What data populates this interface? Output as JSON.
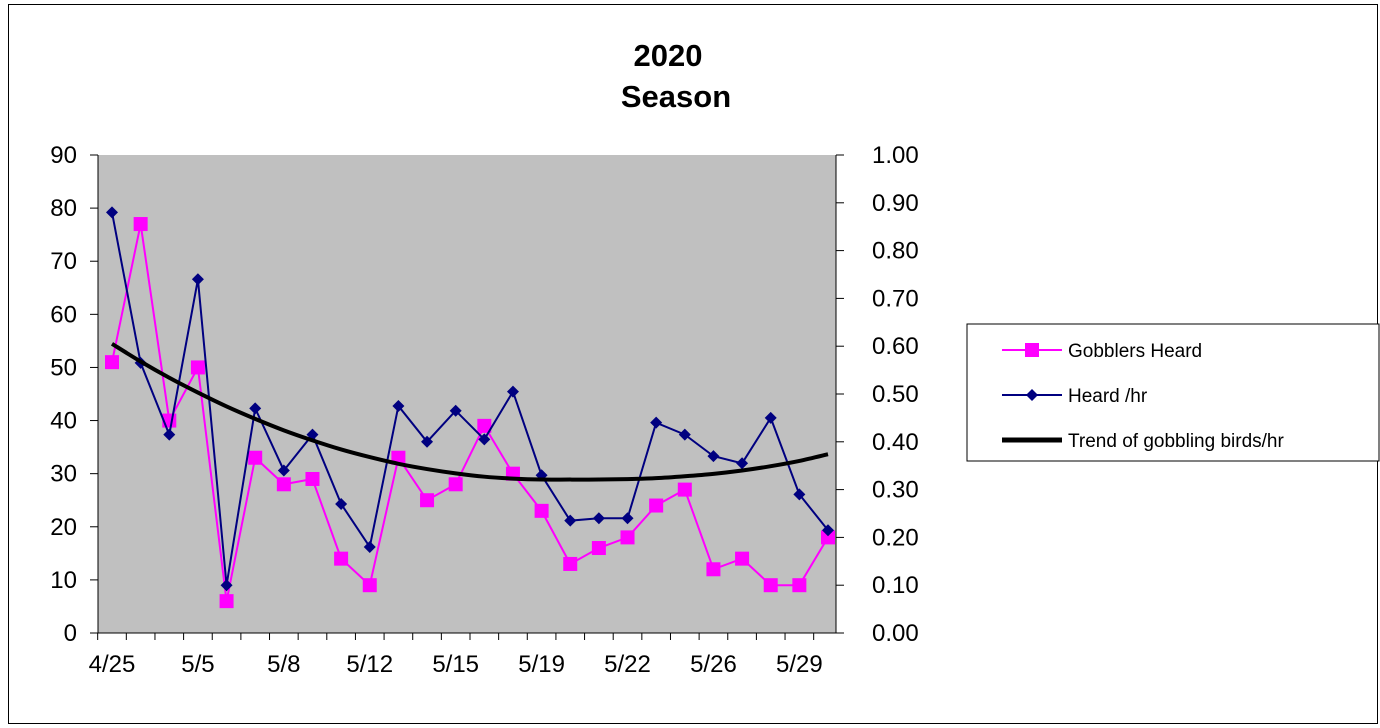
{
  "chart_data": {
    "type": "line",
    "title": [
      "2020",
      "Season"
    ],
    "x_tick_labels": [
      "4/25",
      "5/5",
      "5/8",
      "5/12",
      "5/15",
      "5/19",
      "5/22",
      "5/26",
      "5/29"
    ],
    "y_left": {
      "min": 0,
      "max": 90,
      "ticks": [
        "0",
        "10",
        "20",
        "30",
        "40",
        "50",
        "60",
        "70",
        "80",
        "90"
      ]
    },
    "y_right": {
      "min": 0,
      "max": 1,
      "ticks": [
        "0.00",
        "0.10",
        "0.20",
        "0.30",
        "0.40",
        "0.50",
        "0.60",
        "0.70",
        "0.80",
        "0.90",
        "1.00"
      ]
    },
    "plot_background": "#c0c0c0",
    "grid": false,
    "legend_position": "right",
    "series": [
      {
        "name": "Gobblers Heard",
        "axis": "left",
        "color": "#ff00ff",
        "marker": "square",
        "values": [
          51,
          77,
          40,
          50,
          6,
          33,
          28,
          29,
          14,
          9,
          33,
          25,
          28,
          39,
          30,
          23,
          13,
          16,
          18,
          24,
          27,
          12,
          14,
          9,
          9,
          18
        ]
      },
      {
        "name": "Heard /hr",
        "axis": "right",
        "color": "#000080",
        "marker": "diamond",
        "values": [
          0.88,
          0.565,
          0.415,
          0.74,
          0.1,
          0.47,
          0.34,
          0.415,
          0.27,
          0.18,
          0.475,
          0.4,
          0.465,
          0.405,
          0.505,
          0.33,
          0.235,
          0.24,
          0.24,
          0.44,
          0.415,
          0.37,
          0.355,
          0.45,
          0.29,
          0.215
        ]
      },
      {
        "name": "Trend of gobbling birds/hr",
        "axis": "right",
        "color": "#000000",
        "marker": "none",
        "values": [
          0.605,
          0.568,
          0.534,
          0.503,
          0.474,
          0.448,
          0.424,
          0.403,
          0.384,
          0.368,
          0.354,
          0.343,
          0.334,
          0.327,
          0.323,
          0.321,
          0.321,
          0.321,
          0.322,
          0.324,
          0.328,
          0.333,
          0.34,
          0.349,
          0.36,
          0.374
        ]
      }
    ]
  }
}
